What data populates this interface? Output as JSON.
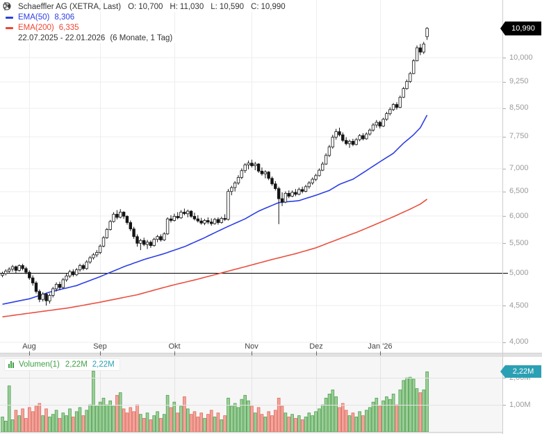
{
  "header": {
    "title": "Schaeffler AG (XETRA, Last)",
    "ohlc": [
      {
        "k": "O:",
        "v": "10,700"
      },
      {
        "k": "H:",
        "v": "11,030"
      },
      {
        "k": "L:",
        "v": "10,590"
      },
      {
        "k": "C:",
        "v": "10,990"
      }
    ],
    "ema50": {
      "label": "EMA(50)",
      "value": "8,306"
    },
    "ema200": {
      "label": "EMA(200)",
      "value": "6,335"
    },
    "period": {
      "range": "22.07.2025 - 22.01.2026",
      "detail": "(6 Monate, 1 Tag)"
    }
  },
  "price_axis": {
    "labels": [
      {
        "text": "10,000",
        "value": 10.0
      },
      {
        "text": "9,250",
        "value": 9.25
      },
      {
        "text": "8,500",
        "value": 8.5
      },
      {
        "text": "7,750",
        "value": 7.75
      },
      {
        "text": "7,000",
        "value": 7.0
      },
      {
        "text": "6,500",
        "value": 6.5
      },
      {
        "text": "6,000",
        "value": 6.0
      },
      {
        "text": "5,500",
        "value": 5.5
      },
      {
        "text": "5,000",
        "value": 5.0
      },
      {
        "text": "4,500",
        "value": 4.5
      },
      {
        "text": "4,000",
        "value": 4.0
      }
    ],
    "last_badge": {
      "text": "10,990",
      "value": 10.99
    }
  },
  "volume_panel": {
    "legend": {
      "label": "Volumen(1)",
      "value": "2,22M",
      "value2": "2,22M"
    },
    "axis": [
      {
        "text": "2,00M",
        "value": 2.0
      },
      {
        "text": "1,00M",
        "value": 1.0
      }
    ],
    "badge": {
      "text": "2,22M",
      "value": 2.22
    }
  },
  "colors": {
    "candle": "#151515",
    "up_fill": "#ffffff",
    "down_fill": "#151515",
    "ema50": "#2b3ee3",
    "ema200": "#e8503f",
    "vol_up_fill": "#9bcf96",
    "vol_up_stroke": "#4f9e52",
    "vol_down_fill": "#f4a49c",
    "vol_down_stroke": "#dd6a5c",
    "grid": "#ededed",
    "vol_grid": "#e3e3e3",
    "baseline": "#000000",
    "teal": "#2ba0b4",
    "green": "#3fa044"
  },
  "chart_data": {
    "type": "candlestick+volume",
    "title": "Schaeffler AG (XETRA, Last)",
    "x_range": "22.07.2025 - 22.01.2026 (6 Monate, 1 Tag)",
    "y_scale": "log",
    "ylim": [
      3.95,
      11.2
    ],
    "volume_ylim": [
      0,
      2.8
    ],
    "baseline_price": 5.0,
    "months": [
      {
        "label": "Aug",
        "index": 8
      },
      {
        "label": "Sep",
        "index": 29
      },
      {
        "label": "Okt",
        "index": 51
      },
      {
        "label": "Nov",
        "index": 74
      },
      {
        "label": "Dez",
        "index": 93
      },
      {
        "label": "Jan '26",
        "index": 112
      }
    ],
    "candles": [
      [
        4.96,
        5.02,
        4.93,
        4.99
      ],
      [
        4.99,
        5.06,
        4.96,
        5.03
      ],
      [
        5.03,
        5.09,
        4.99,
        5.06
      ],
      [
        5.06,
        5.13,
        5.02,
        5.1
      ],
      [
        5.1,
        5.12,
        5.0,
        5.04
      ],
      [
        5.04,
        5.14,
        5.02,
        5.12
      ],
      [
        5.12,
        5.15,
        5.04,
        5.07
      ],
      [
        5.07,
        5.1,
        4.98,
        5.01
      ],
      [
        5.01,
        5.04,
        4.89,
        4.92
      ],
      [
        4.92,
        4.96,
        4.8,
        4.84
      ],
      [
        4.84,
        4.87,
        4.68,
        4.71
      ],
      [
        4.71,
        4.74,
        4.55,
        4.59
      ],
      [
        4.59,
        4.7,
        4.56,
        4.67
      ],
      [
        4.67,
        4.69,
        4.5,
        4.57
      ],
      [
        4.57,
        4.68,
        4.53,
        4.65
      ],
      [
        4.65,
        4.78,
        4.62,
        4.75
      ],
      [
        4.75,
        4.85,
        4.71,
        4.82
      ],
      [
        4.82,
        4.86,
        4.73,
        4.77
      ],
      [
        4.77,
        4.92,
        4.75,
        4.89
      ],
      [
        4.89,
        4.99,
        4.86,
        4.95
      ],
      [
        4.95,
        5.05,
        4.92,
        5.02
      ],
      [
        5.02,
        5.06,
        4.94,
        4.97
      ],
      [
        4.97,
        5.08,
        4.95,
        5.05
      ],
      [
        5.05,
        5.15,
        5.02,
        5.12
      ],
      [
        5.12,
        5.15,
        5.04,
        5.07
      ],
      [
        5.07,
        5.21,
        5.05,
        5.18
      ],
      [
        5.18,
        5.28,
        5.15,
        5.25
      ],
      [
        5.25,
        5.33,
        5.22,
        5.3
      ],
      [
        5.3,
        5.38,
        5.26,
        5.34
      ],
      [
        5.34,
        5.48,
        5.31,
        5.45
      ],
      [
        5.45,
        5.63,
        5.43,
        5.6
      ],
      [
        5.6,
        5.78,
        5.58,
        5.75
      ],
      [
        5.75,
        5.93,
        5.73,
        5.9
      ],
      [
        5.9,
        6.08,
        5.88,
        6.04
      ],
      [
        6.04,
        6.12,
        5.94,
        5.98
      ],
      [
        5.98,
        6.14,
        5.96,
        6.08
      ],
      [
        6.08,
        6.1,
        5.95,
        6.0
      ],
      [
        6.0,
        6.02,
        5.84,
        5.88
      ],
      [
        5.88,
        5.92,
        5.72,
        5.76
      ],
      [
        5.76,
        5.8,
        5.58,
        5.62
      ],
      [
        5.62,
        5.66,
        5.44,
        5.5
      ],
      [
        5.5,
        5.58,
        5.38,
        5.55
      ],
      [
        5.55,
        5.6,
        5.45,
        5.48
      ],
      [
        5.48,
        5.56,
        5.4,
        5.52
      ],
      [
        5.52,
        5.55,
        5.42,
        5.46
      ],
      [
        5.46,
        5.6,
        5.44,
        5.57
      ],
      [
        5.57,
        5.65,
        5.52,
        5.62
      ],
      [
        5.62,
        5.66,
        5.53,
        5.56
      ],
      [
        5.56,
        5.7,
        5.54,
        5.67
      ],
      [
        5.67,
        5.98,
        5.65,
        5.95
      ],
      [
        5.95,
        6.02,
        5.88,
        5.92
      ],
      [
        5.92,
        6.05,
        5.9,
        6.0
      ],
      [
        6.0,
        6.08,
        5.94,
        5.97
      ],
      [
        5.97,
        6.12,
        5.95,
        6.08
      ],
      [
        6.08,
        6.15,
        6.02,
        6.05
      ],
      [
        6.05,
        6.13,
        5.98,
        6.1
      ],
      [
        6.1,
        6.12,
        5.97,
        6.0
      ],
      [
        6.0,
        6.07,
        5.92,
        5.95
      ],
      [
        5.95,
        6.02,
        5.88,
        5.91
      ],
      [
        5.91,
        5.97,
        5.84,
        5.87
      ],
      [
        5.87,
        5.95,
        5.83,
        5.92
      ],
      [
        5.92,
        5.98,
        5.85,
        5.89
      ],
      [
        5.89,
        5.96,
        5.82,
        5.86
      ],
      [
        5.86,
        5.97,
        5.84,
        5.94
      ],
      [
        5.94,
        5.98,
        5.84,
        5.88
      ],
      [
        5.88,
        5.99,
        5.86,
        5.96
      ],
      [
        5.96,
        6.04,
        5.91,
        5.94
      ],
      [
        5.94,
        6.55,
        5.92,
        6.5
      ],
      [
        6.5,
        6.62,
        6.42,
        6.58
      ],
      [
        6.58,
        6.72,
        6.5,
        6.68
      ],
      [
        6.68,
        6.85,
        6.64,
        6.8
      ],
      [
        6.8,
        7.0,
        6.76,
        6.95
      ],
      [
        6.95,
        7.12,
        6.9,
        7.08
      ],
      [
        7.08,
        7.18,
        6.98,
        7.12
      ],
      [
        7.12,
        7.2,
        7.02,
        7.06
      ],
      [
        7.06,
        7.15,
        6.96,
        7.1
      ],
      [
        7.1,
        7.12,
        6.9,
        6.94
      ],
      [
        6.94,
        7.02,
        6.84,
        6.88
      ],
      [
        6.88,
        6.96,
        6.78,
        6.92
      ],
      [
        6.92,
        6.94,
        6.74,
        6.78
      ],
      [
        6.78,
        6.82,
        6.62,
        6.66
      ],
      [
        6.66,
        6.72,
        6.52,
        6.56
      ],
      [
        6.56,
        6.6,
        5.85,
        6.35
      ],
      [
        6.35,
        6.48,
        6.2,
        6.28
      ],
      [
        6.28,
        6.5,
        6.26,
        6.46
      ],
      [
        6.46,
        6.52,
        6.36,
        6.4
      ],
      [
        6.4,
        6.52,
        6.38,
        6.48
      ],
      [
        6.48,
        6.55,
        6.4,
        6.44
      ],
      [
        6.44,
        6.58,
        6.42,
        6.54
      ],
      [
        6.54,
        6.6,
        6.46,
        6.5
      ],
      [
        6.5,
        6.64,
        6.48,
        6.6
      ],
      [
        6.6,
        6.72,
        6.56,
        6.68
      ],
      [
        6.68,
        6.8,
        6.64,
        6.76
      ],
      [
        6.76,
        6.88,
        6.72,
        6.84
      ],
      [
        6.84,
        7.0,
        6.82,
        6.96
      ],
      [
        6.96,
        7.15,
        6.94,
        7.1
      ],
      [
        7.1,
        7.35,
        7.08,
        7.3
      ],
      [
        7.3,
        7.55,
        7.26,
        7.5
      ],
      [
        7.5,
        7.8,
        7.46,
        7.74
      ],
      [
        7.74,
        7.95,
        7.68,
        7.88
      ],
      [
        7.88,
        7.98,
        7.76,
        7.8
      ],
      [
        7.8,
        7.86,
        7.62,
        7.66
      ],
      [
        7.66,
        7.74,
        7.54,
        7.58
      ],
      [
        7.58,
        7.68,
        7.48,
        7.64
      ],
      [
        7.64,
        7.7,
        7.52,
        7.56
      ],
      [
        7.56,
        7.72,
        7.54,
        7.68
      ],
      [
        7.68,
        7.82,
        7.64,
        7.78
      ],
      [
        7.78,
        7.84,
        7.66,
        7.7
      ],
      [
        7.7,
        7.86,
        7.68,
        7.82
      ],
      [
        7.82,
        7.96,
        7.78,
        7.92
      ],
      [
        7.92,
        8.1,
        7.88,
        8.05
      ],
      [
        8.05,
        8.18,
        7.98,
        8.12
      ],
      [
        8.12,
        8.16,
        7.96,
        8.02
      ],
      [
        8.02,
        8.24,
        8.0,
        8.2
      ],
      [
        8.2,
        8.4,
        8.16,
        8.35
      ],
      [
        8.35,
        8.52,
        8.3,
        8.46
      ],
      [
        8.46,
        8.64,
        8.42,
        8.6
      ],
      [
        8.6,
        8.66,
        8.46,
        8.52
      ],
      [
        8.52,
        8.85,
        8.5,
        8.8
      ],
      [
        8.8,
        9.1,
        8.78,
        9.05
      ],
      [
        9.05,
        9.32,
        9.02,
        9.26
      ],
      [
        9.26,
        9.55,
        9.22,
        9.5
      ],
      [
        9.5,
        9.95,
        9.48,
        9.9
      ],
      [
        9.9,
        10.4,
        9.88,
        10.32
      ],
      [
        10.32,
        10.45,
        10.08,
        10.18
      ],
      [
        10.18,
        10.52,
        10.12,
        10.45
      ],
      [
        10.7,
        11.03,
        10.59,
        10.99
      ]
    ],
    "volumes": [
      0.55,
      0.4,
      1.7,
      0.45,
      0.8,
      0.6,
      0.85,
      0.5,
      0.9,
      0.75,
      0.95,
      1.05,
      0.6,
      0.85,
      0.55,
      0.65,
      0.8,
      0.5,
      0.7,
      0.6,
      0.85,
      0.55,
      0.75,
      0.9,
      0.6,
      0.8,
      1.0,
      2.25,
      0.95,
      1.1,
      1.25,
      1.0,
      1.15,
      0.95,
      1.35,
      1.45,
      0.85,
      0.7,
      0.9,
      0.75,
      1.0,
      0.65,
      0.5,
      0.7,
      0.45,
      0.6,
      0.75,
      0.5,
      0.65,
      1.35,
      0.9,
      1.1,
      0.7,
      0.95,
      1.3,
      0.85,
      0.65,
      0.75,
      0.55,
      0.7,
      0.5,
      0.65,
      0.8,
      0.55,
      0.7,
      0.45,
      0.6,
      1.25,
      0.95,
      1.05,
      0.9,
      1.2,
      1.35,
      1.15,
      0.95,
      0.7,
      0.9,
      0.65,
      0.55,
      0.75,
      0.6,
      0.8,
      1.25,
      0.95,
      0.7,
      0.55,
      0.65,
      0.5,
      0.6,
      0.45,
      0.55,
      0.7,
      0.6,
      0.75,
      0.85,
      1.0,
      1.25,
      1.4,
      1.55,
      1.3,
      0.9,
      1.05,
      0.8,
      0.6,
      0.7,
      0.55,
      0.75,
      0.6,
      0.8,
      0.9,
      1.1,
      1.25,
      0.95,
      1.15,
      1.3,
      1.2,
      1.4,
      1.0,
      1.55,
      1.9,
      2.0,
      2.02,
      1.95,
      1.6,
      1.45,
      1.55,
      2.22
    ],
    "ema50_points": [
      [
        0,
        4.52
      ],
      [
        8,
        4.6
      ],
      [
        14,
        4.7
      ],
      [
        22,
        4.8
      ],
      [
        29,
        4.94
      ],
      [
        36,
        5.1
      ],
      [
        42,
        5.22
      ],
      [
        48,
        5.32
      ],
      [
        54,
        5.44
      ],
      [
        60,
        5.6
      ],
      [
        66,
        5.78
      ],
      [
        72,
        5.95
      ],
      [
        76,
        6.1
      ],
      [
        82,
        6.27
      ],
      [
        88,
        6.31
      ],
      [
        93,
        6.42
      ],
      [
        97,
        6.52
      ],
      [
        100,
        6.65
      ],
      [
        104,
        6.76
      ],
      [
        108,
        6.95
      ],
      [
        112,
        7.15
      ],
      [
        116,
        7.35
      ],
      [
        119,
        7.59
      ],
      [
        122,
        7.8
      ],
      [
        124,
        7.98
      ],
      [
        126,
        8.31
      ]
    ],
    "ema200_points": [
      [
        0,
        4.34
      ],
      [
        20,
        4.47
      ],
      [
        29,
        4.55
      ],
      [
        40,
        4.66
      ],
      [
        50,
        4.8
      ],
      [
        58,
        4.9
      ],
      [
        65,
        5.0
      ],
      [
        72,
        5.1
      ],
      [
        80,
        5.22
      ],
      [
        87,
        5.32
      ],
      [
        93,
        5.42
      ],
      [
        100,
        5.58
      ],
      [
        106,
        5.72
      ],
      [
        112,
        5.88
      ],
      [
        117,
        6.02
      ],
      [
        121,
        6.14
      ],
      [
        124,
        6.24
      ],
      [
        126,
        6.34
      ]
    ]
  }
}
